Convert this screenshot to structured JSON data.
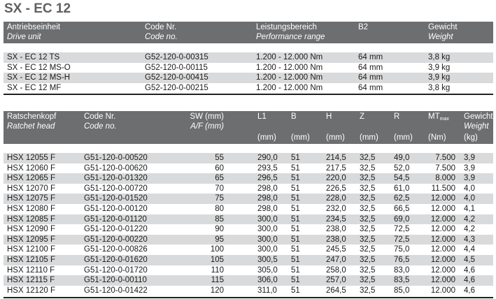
{
  "title": "SX - EC 12",
  "drive_table": {
    "headers": [
      {
        "de": "Antriebseinheit",
        "en": "Drive unit"
      },
      {
        "de": "Code Nr.",
        "en": "Code no."
      },
      {
        "de": "Leistungsbereich",
        "en": "Performance range"
      },
      {
        "de": "B2",
        "en": ""
      },
      {
        "de": "Gewicht",
        "en": "Weight"
      }
    ],
    "rows": [
      [
        "SX - EC 12 TS",
        "G52-120-0-00315",
        "1.200 - 12.000 Nm",
        "64 mm",
        "3,8 kg"
      ],
      [
        "SX - EC 12 MS-O",
        "G52-120-0-00115",
        "1.200 - 12.000 Nm",
        "64 mm",
        "3,9 kg"
      ],
      [
        "SX - EC 12 MS-H",
        "G52-120-0-00415",
        "1.200 - 12.000 Nm",
        "64 mm",
        "3,9 kg"
      ],
      [
        "SX - EC 12 MF",
        "G52-120-0-00215",
        "1.200 - 12.000 Nm",
        "64 mm",
        "3,8 kg"
      ]
    ]
  },
  "ratchet_table": {
    "headers": [
      {
        "de": "Ratschenkopf",
        "en": "Ratchet head",
        "unit": ""
      },
      {
        "de": "Code Nr.",
        "en": "Code no.",
        "unit": ""
      },
      {
        "de": "SW (mm)",
        "en": "A/F (mm)",
        "unit": ""
      },
      {
        "de": "L1",
        "en": "",
        "unit": "(mm)"
      },
      {
        "de": "B",
        "en": "",
        "unit": "(mm)"
      },
      {
        "de": "H",
        "en": "",
        "unit": "(mm)"
      },
      {
        "de": "Z",
        "en": "",
        "unit": "(mm)"
      },
      {
        "de": "R",
        "en": "",
        "unit": "(mm)"
      },
      {
        "de": "MT",
        "sub": "max",
        "en": "",
        "unit": "(Nm)"
      },
      {
        "de": "Gewicht",
        "en": "Weight",
        "unit": "(kg)"
      }
    ],
    "rows": [
      [
        "HSX 12055 F",
        "G51-120-0-00520",
        "55",
        "290,0",
        "51",
        "214,5",
        "32,5",
        "49,0",
        "7.500",
        "3,9"
      ],
      [
        "HSX 12060 F",
        "G51-120-0-00620",
        "60",
        "293,5",
        "51",
        "217,5",
        "32,5",
        "52,0",
        "7.500",
        "3,9"
      ],
      [
        "HSX 12065 F",
        "G51-120-0-01320",
        "65",
        "296,5",
        "51",
        "220,0",
        "32,5",
        "54,5",
        "8.000",
        "3,9"
      ],
      [
        "HSX 12070 F",
        "G51-120-0-00720",
        "70",
        "298,0",
        "51",
        "226,5",
        "32,5",
        "61,0",
        "11.500",
        "4,0"
      ],
      [
        "HSX 12075 F",
        "G51-120-0-01520",
        "75",
        "298,0",
        "51",
        "228,0",
        "32,5",
        "62,5",
        "12.000",
        "4,0"
      ],
      [
        "HSX 12080 F",
        "G51-120-0-00120",
        "80",
        "298,0",
        "51",
        "232,0",
        "32,5",
        "66,5",
        "12.000",
        "4,1"
      ],
      [
        "HSX 12085 F",
        "G51-120-0-01120",
        "85",
        "300,0",
        "51",
        "234,5",
        "32,5",
        "69,0",
        "12.000",
        "4,2"
      ],
      [
        "HSX 12090 F",
        "G51-120-0-01220",
        "90",
        "300,0",
        "51",
        "238,0",
        "32,5",
        "72,5",
        "12.000",
        "4,2"
      ],
      [
        "HSX 12095 F",
        "G51-120-0-00220",
        "95",
        "300,0",
        "51",
        "238,0",
        "32,5",
        "72,5",
        "12.000",
        "4,3"
      ],
      [
        "HSX 12100 F",
        "G51-120-0-00826",
        "100",
        "300,0",
        "51",
        "245,5",
        "32,5",
        "75,0",
        "12.000",
        "4,4"
      ],
      [
        "HSX 12105 F",
        "G51-120-0-01620",
        "105",
        "300,5",
        "51",
        "247,0",
        "32,5",
        "76,5",
        "12.000",
        "4,5"
      ],
      [
        "HSX 12110 F",
        "G51-120-0-01720",
        "110",
        "305,0",
        "51",
        "258,0",
        "32,5",
        "83,0",
        "12.000",
        "4,6"
      ],
      [
        "HSX 12115 F",
        "G51-120-0-00110",
        "115",
        "306,0",
        "51",
        "257,0",
        "32,5",
        "83,5",
        "12.000",
        "4,6"
      ],
      [
        "HSX 12120 F",
        "G51-120-0-01422",
        "120",
        "311,0",
        "51",
        "264,5",
        "32,5",
        "85,0",
        "12.000",
        "4,6"
      ]
    ]
  }
}
